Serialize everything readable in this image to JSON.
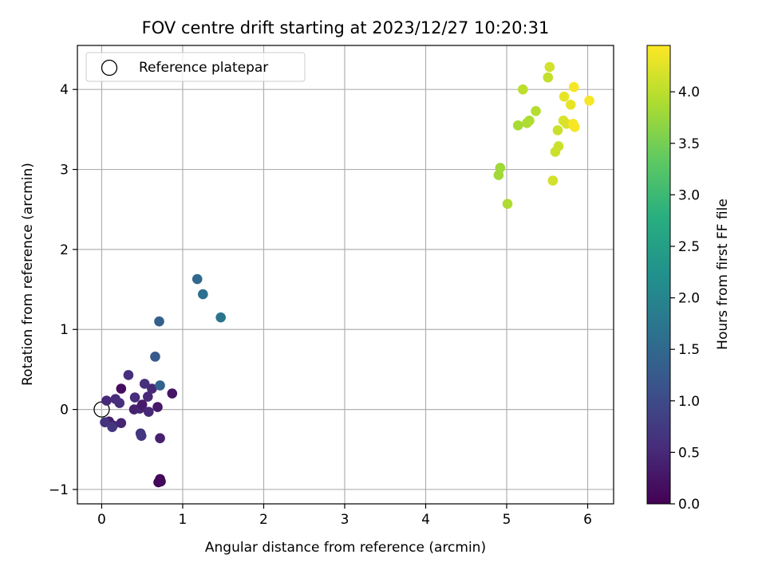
{
  "chart_data": {
    "type": "scatter",
    "title": "FOV centre drift starting at 2023/12/27 10:20:31",
    "xlabel": "Angular distance from reference (arcmin)",
    "ylabel": "Rotation from reference (arcmin)",
    "xlim": [
      -0.3,
      6.32
    ],
    "ylim": [
      -1.18,
      4.55
    ],
    "xticks": [
      0,
      1,
      2,
      3,
      4,
      5,
      6
    ],
    "xtick_labels": [
      "0",
      "1",
      "2",
      "3",
      "4",
      "5",
      "6"
    ],
    "yticks": [
      -1,
      0,
      1,
      2,
      3,
      4
    ],
    "ytick_labels": [
      "−1",
      "0",
      "1",
      "2",
      "3",
      "4"
    ],
    "grid": true,
    "legend": {
      "placement": "top-left",
      "entries": [
        "Reference platepar"
      ]
    },
    "reference_point": {
      "x": 0,
      "y": 0
    },
    "colorbar": {
      "label": "Hours from first FF file",
      "min": 0,
      "max": 4.45,
      "ticks": [
        0,
        0.5,
        1,
        1.5,
        2,
        2.5,
        3,
        3.5,
        4
      ],
      "tick_labels": [
        "0.0",
        "0.5",
        "1.0",
        "1.5",
        "2.0",
        "2.5",
        "3.0",
        "3.5",
        "4.0"
      ],
      "colormap": "viridis"
    },
    "points": [
      {
        "x": 0.24,
        "y": 0.26,
        "c": 0.15
      },
      {
        "x": 0.09,
        "y": -0.15,
        "c": 0.35
      },
      {
        "x": 0.14,
        "y": -0.2,
        "c": 0.4
      },
      {
        "x": 0.24,
        "y": -0.17,
        "c": 0.45
      },
      {
        "x": 0.06,
        "y": 0.11,
        "c": 0.5
      },
      {
        "x": 0.17,
        "y": 0.13,
        "c": 0.55
      },
      {
        "x": 0.22,
        "y": 0.08,
        "c": 0.6
      },
      {
        "x": 0.04,
        "y": -0.16,
        "c": 0.65
      },
      {
        "x": 0.13,
        "y": -0.22,
        "c": 0.7
      },
      {
        "x": 0.33,
        "y": 0.43,
        "c": 0.6
      },
      {
        "x": 0.41,
        "y": 0.15,
        "c": 0.55
      },
      {
        "x": 0.4,
        "y": 0.0,
        "c": 0.4
      },
      {
        "x": 0.47,
        "y": 0.01,
        "c": 0.45
      },
      {
        "x": 0.5,
        "y": 0.06,
        "c": 0.3
      },
      {
        "x": 0.57,
        "y": 0.16,
        "c": 0.5
      },
      {
        "x": 0.58,
        "y": -0.03,
        "c": 0.5
      },
      {
        "x": 0.53,
        "y": 0.32,
        "c": 0.6
      },
      {
        "x": 0.62,
        "y": 0.26,
        "c": 0.5
      },
      {
        "x": 0.69,
        "y": 0.03,
        "c": 0.3
      },
      {
        "x": 0.48,
        "y": -0.3,
        "c": 0.65
      },
      {
        "x": 0.49,
        "y": -0.33,
        "c": 0.7
      },
      {
        "x": 0.72,
        "y": -0.36,
        "c": 0.4
      },
      {
        "x": 0.87,
        "y": 0.2,
        "c": 0.25
      },
      {
        "x": 0.72,
        "y": -0.87,
        "c": 0.1
      },
      {
        "x": 0.7,
        "y": -0.91,
        "c": 0.05
      },
      {
        "x": 0.73,
        "y": -0.9,
        "c": 0.1
      },
      {
        "x": 0.72,
        "y": 0.3,
        "c": 1.4
      },
      {
        "x": 0.66,
        "y": 0.66,
        "c": 1.25
      },
      {
        "x": 0.71,
        "y": 1.1,
        "c": 1.35
      },
      {
        "x": 1.18,
        "y": 1.63,
        "c": 1.5
      },
      {
        "x": 1.25,
        "y": 1.44,
        "c": 1.6
      },
      {
        "x": 1.47,
        "y": 1.15,
        "c": 1.7
      },
      {
        "x": 5.01,
        "y": 2.57,
        "c": 3.9
      },
      {
        "x": 4.9,
        "y": 2.93,
        "c": 3.8
      },
      {
        "x": 4.92,
        "y": 3.02,
        "c": 3.8
      },
      {
        "x": 5.14,
        "y": 3.55,
        "c": 3.85
      },
      {
        "x": 5.25,
        "y": 3.58,
        "c": 3.9
      },
      {
        "x": 5.28,
        "y": 3.61,
        "c": 3.9
      },
      {
        "x": 5.2,
        "y": 4.0,
        "c": 4.0
      },
      {
        "x": 5.36,
        "y": 3.73,
        "c": 3.95
      },
      {
        "x": 5.51,
        "y": 4.15,
        "c": 4.05
      },
      {
        "x": 5.53,
        "y": 4.28,
        "c": 4.15
      },
      {
        "x": 5.57,
        "y": 2.86,
        "c": 4.15
      },
      {
        "x": 5.6,
        "y": 3.22,
        "c": 4.1
      },
      {
        "x": 5.64,
        "y": 3.29,
        "c": 4.1
      },
      {
        "x": 5.63,
        "y": 3.49,
        "c": 4.1
      },
      {
        "x": 5.7,
        "y": 3.61,
        "c": 4.2
      },
      {
        "x": 5.74,
        "y": 3.57,
        "c": 4.2
      },
      {
        "x": 5.71,
        "y": 3.91,
        "c": 4.3
      },
      {
        "x": 5.79,
        "y": 3.81,
        "c": 4.3
      },
      {
        "x": 5.82,
        "y": 3.57,
        "c": 4.4
      },
      {
        "x": 5.84,
        "y": 3.53,
        "c": 4.4
      },
      {
        "x": 5.83,
        "y": 4.03,
        "c": 4.4
      },
      {
        "x": 6.02,
        "y": 3.86,
        "c": 4.4
      }
    ]
  }
}
